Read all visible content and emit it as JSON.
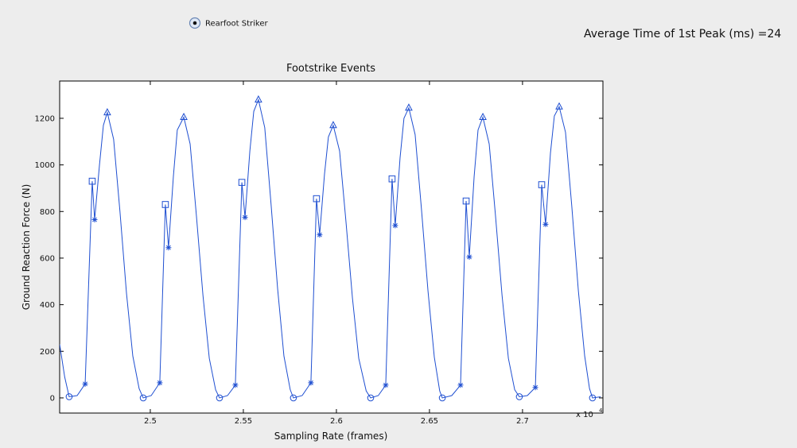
{
  "radio": {
    "label": "Rearfoot Striker",
    "selected": true
  },
  "readout": {
    "text": "Average Time of 1st Peak (ms) =24"
  },
  "chart_data": {
    "type": "line",
    "title": "Footstrike Events",
    "x_label": "Sampling Rate (frames)",
    "y_label": "Ground Reaction Force (N)",
    "x_multiplier": {
      "base": "x 10",
      "exponent": "4"
    },
    "xlim": [
      2.4513,
      2.7432
    ],
    "ylim": [
      -65,
      1360
    ],
    "xticks": [
      2.5,
      2.55,
      2.6,
      2.65,
      2.7
    ],
    "yticks": [
      0,
      200,
      400,
      600,
      800,
      1000,
      1200
    ],
    "grid": false,
    "series": [
      {
        "color": "#1f4fd1",
        "marker": "none",
        "x": [
          2.4513,
          2.454,
          2.4564,
          2.4607,
          2.465,
          2.4688,
          2.4701,
          2.4727,
          2.4748,
          2.4769,
          2.4803,
          2.4837,
          2.4872,
          2.4906,
          2.494,
          2.4962,
          2.5005,
          2.5051,
          2.5081,
          2.5098,
          2.5124,
          2.5145,
          2.518,
          2.5214,
          2.5248,
          2.5283,
          2.5317,
          2.5351,
          2.5372,
          2.5415,
          2.5457,
          2.5492,
          2.5509,
          2.5535,
          2.5556,
          2.5581,
          2.5615,
          2.5649,
          2.5684,
          2.5718,
          2.5752,
          2.5769,
          2.5816,
          2.5863,
          2.5893,
          2.591,
          2.5936,
          2.5957,
          2.5983,
          2.6017,
          2.6051,
          2.6086,
          2.612,
          2.616,
          2.6184,
          2.6225,
          2.6265,
          2.6299,
          2.6316,
          2.6342,
          2.6363,
          2.6389,
          2.6423,
          2.6457,
          2.6492,
          2.6526,
          2.6555,
          2.6569,
          2.662,
          2.6667,
          2.6697,
          2.6714,
          2.674,
          2.6761,
          2.6787,
          2.6821,
          2.6855,
          2.689,
          2.6924,
          2.6958,
          2.6983,
          2.7026,
          2.7069,
          2.7103,
          2.7124,
          2.715,
          2.7171,
          2.7197,
          2.7231,
          2.7265,
          2.73,
          2.7334,
          2.736,
          2.7376,
          2.742
        ],
        "values": [
          230,
          90,
          5,
          10,
          60,
          930,
          765,
          1000,
          1170,
          1225,
          1110,
          800,
          450,
          180,
          40,
          0,
          10,
          65,
          830,
          645,
          950,
          1150,
          1205,
          1090,
          780,
          440,
          170,
          35,
          0,
          10,
          55,
          925,
          775,
          1060,
          1230,
          1280,
          1160,
          830,
          470,
          180,
          35,
          0,
          10,
          65,
          855,
          700,
          960,
          1120,
          1170,
          1060,
          760,
          430,
          170,
          30,
          0,
          10,
          55,
          940,
          740,
          1030,
          1200,
          1245,
          1130,
          810,
          460,
          175,
          30,
          0,
          10,
          55,
          845,
          605,
          950,
          1150,
          1205,
          1090,
          780,
          440,
          170,
          35,
          5,
          10,
          45,
          915,
          745,
          1050,
          1210,
          1250,
          1140,
          820,
          460,
          180,
          40,
          0,
          5
        ]
      },
      {
        "color": "#1f4fd1",
        "marker": "circle",
        "x": [
          2.4564,
          2.4962,
          2.5372,
          2.5769,
          2.6184,
          2.6569,
          2.6983,
          2.7376
        ],
        "values": [
          5,
          0,
          0,
          0,
          0,
          0,
          5,
          0
        ]
      },
      {
        "color": "#1f4fd1",
        "marker": "asterisk",
        "x": [
          2.465,
          2.5051,
          2.5457,
          2.5863,
          2.6265,
          2.6667,
          2.7069
        ],
        "values": [
          60,
          65,
          55,
          65,
          55,
          55,
          45
        ]
      },
      {
        "color": "#1f4fd1",
        "marker": "square",
        "x": [
          2.4688,
          2.5081,
          2.5492,
          2.5893,
          2.6299,
          2.6697,
          2.7103
        ],
        "values": [
          930,
          830,
          925,
          855,
          940,
          845,
          915
        ]
      },
      {
        "color": "#1f4fd1",
        "marker": "asterisk",
        "x": [
          2.4701,
          2.5098,
          2.5509,
          2.591,
          2.6316,
          2.6714,
          2.7124
        ],
        "values": [
          765,
          645,
          775,
          700,
          740,
          605,
          745
        ]
      },
      {
        "color": "#1f4fd1",
        "marker": "triangle",
        "x": [
          2.4769,
          2.518,
          2.5581,
          2.5983,
          2.6389,
          2.6787,
          2.7197
        ],
        "values": [
          1225,
          1205,
          1280,
          1170,
          1245,
          1205,
          1250
        ]
      }
    ]
  }
}
